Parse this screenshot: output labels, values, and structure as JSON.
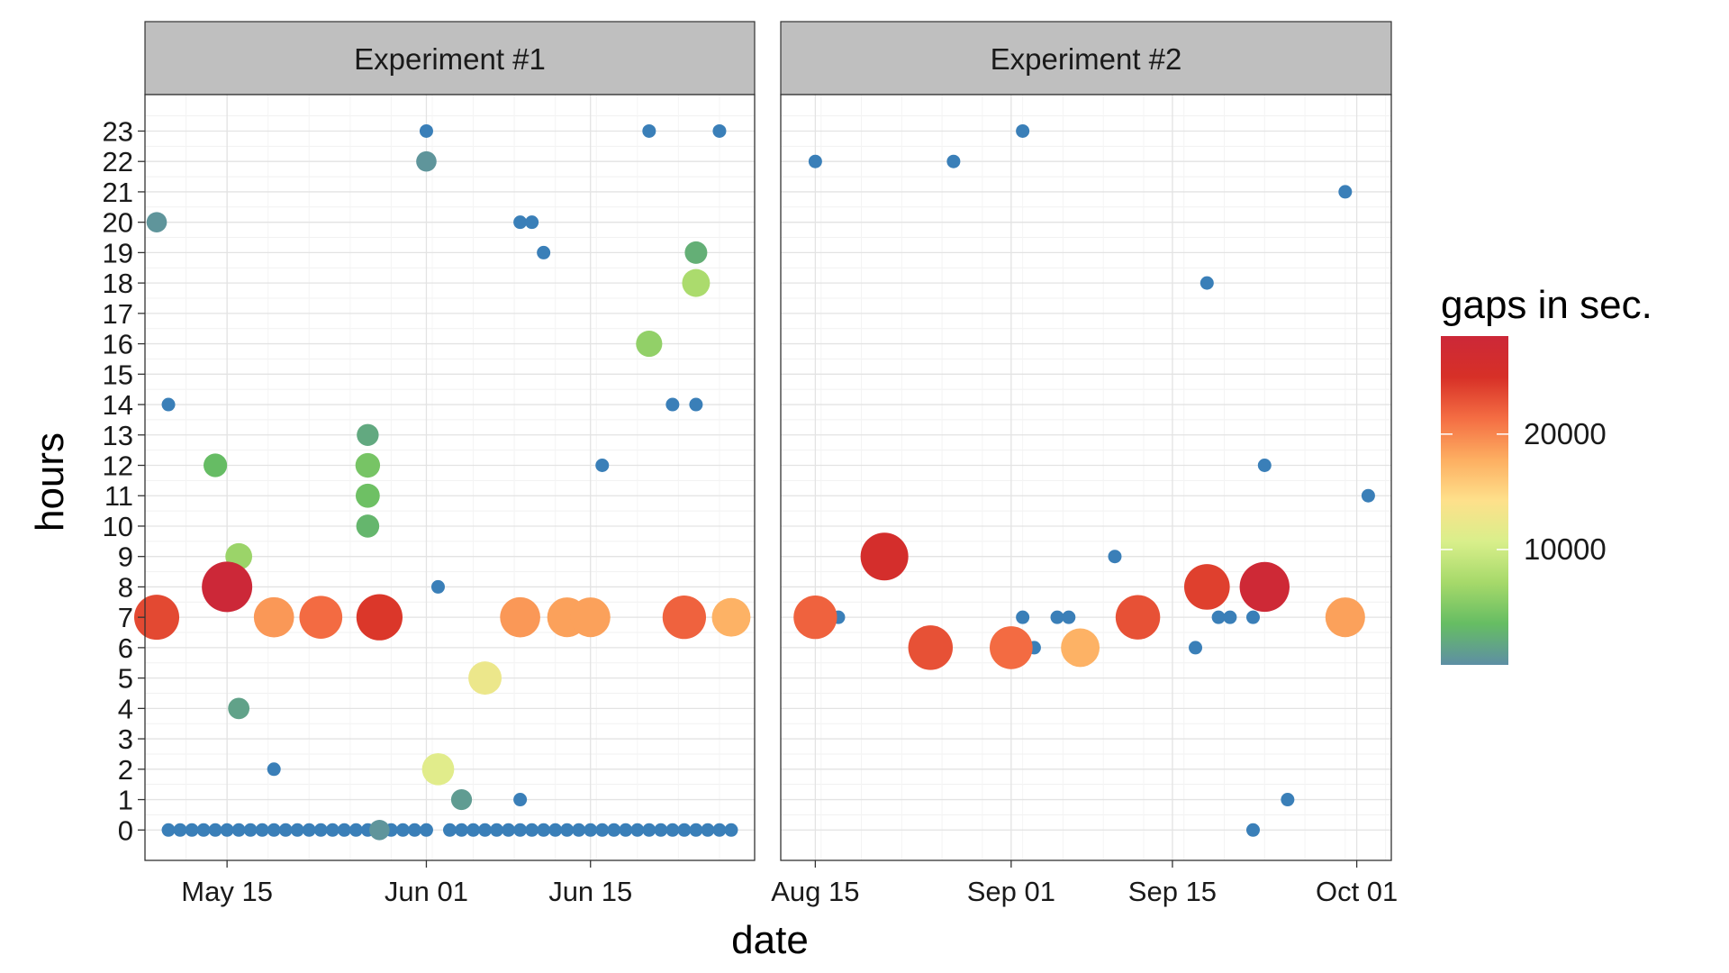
{
  "chart_data": {
    "type": "scatter",
    "xlabel": "date",
    "ylabel": "hours",
    "y_ticks": [
      0,
      1,
      2,
      3,
      4,
      5,
      6,
      7,
      8,
      9,
      10,
      11,
      12,
      13,
      14,
      15,
      16,
      17,
      18,
      19,
      20,
      21,
      22,
      23
    ],
    "ylim": [
      -1,
      24.2
    ],
    "grid": true,
    "legend": {
      "title": "gaps in sec.",
      "placement": "right",
      "range": [
        0,
        28500
      ],
      "ticks": [
        10000,
        20000
      ],
      "tick_labels": [
        "10000",
        "20000"
      ],
      "colors": [
        "#5e8fa4",
        "#66bd63",
        "#a6d96a",
        "#d9ef8b",
        "#fee08b",
        "#fdae61",
        "#f46d43",
        "#d73027",
        "#cc2838"
      ]
    },
    "panels": [
      {
        "strip_label": "Experiment #1",
        "x_range": [
          "2016-05-08",
          "2016-06-29"
        ],
        "x_ticks": [
          {
            "date": "2016-05-15",
            "label": "May 15"
          },
          {
            "date": "2016-06-01",
            "label": "Jun 01"
          },
          {
            "date": "2016-06-15",
            "label": "Jun 15"
          }
        ],
        "points": [
          {
            "x": "2016-05-10",
            "y": 0,
            "gap": 0
          },
          {
            "x": "2016-05-11",
            "y": 0,
            "gap": 0
          },
          {
            "x": "2016-05-12",
            "y": 0,
            "gap": 0
          },
          {
            "x": "2016-05-13",
            "y": 0,
            "gap": 0
          },
          {
            "x": "2016-05-14",
            "y": 0,
            "gap": 0
          },
          {
            "x": "2016-05-15",
            "y": 0,
            "gap": 0
          },
          {
            "x": "2016-05-16",
            "y": 0,
            "gap": 0
          },
          {
            "x": "2016-05-17",
            "y": 0,
            "gap": 0
          },
          {
            "x": "2016-05-18",
            "y": 0,
            "gap": 0
          },
          {
            "x": "2016-05-19",
            "y": 0,
            "gap": 0
          },
          {
            "x": "2016-05-20",
            "y": 0,
            "gap": 0
          },
          {
            "x": "2016-05-21",
            "y": 0,
            "gap": 0
          },
          {
            "x": "2016-05-22",
            "y": 0,
            "gap": 0
          },
          {
            "x": "2016-05-23",
            "y": 0,
            "gap": 0
          },
          {
            "x": "2016-05-24",
            "y": 0,
            "gap": 0
          },
          {
            "x": "2016-05-25",
            "y": 0,
            "gap": 0
          },
          {
            "x": "2016-05-26",
            "y": 0,
            "gap": 0
          },
          {
            "x": "2016-05-27",
            "y": 0,
            "gap": 0
          },
          {
            "x": "2016-05-28",
            "y": 0,
            "gap": 500
          },
          {
            "x": "2016-05-29",
            "y": 0,
            "gap": 0
          },
          {
            "x": "2016-05-30",
            "y": 0,
            "gap": 0
          },
          {
            "x": "2016-05-31",
            "y": 0,
            "gap": 0
          },
          {
            "x": "2016-06-01",
            "y": 0,
            "gap": 0
          },
          {
            "x": "2016-06-03",
            "y": 0,
            "gap": 0
          },
          {
            "x": "2016-06-04",
            "y": 0,
            "gap": 0
          },
          {
            "x": "2016-06-05",
            "y": 0,
            "gap": 0
          },
          {
            "x": "2016-06-06",
            "y": 0,
            "gap": 0
          },
          {
            "x": "2016-06-07",
            "y": 0,
            "gap": 0
          },
          {
            "x": "2016-06-08",
            "y": 0,
            "gap": 0
          },
          {
            "x": "2016-06-09",
            "y": 0,
            "gap": 0
          },
          {
            "x": "2016-06-10",
            "y": 0,
            "gap": 0
          },
          {
            "x": "2016-06-11",
            "y": 0,
            "gap": 0
          },
          {
            "x": "2016-06-12",
            "y": 0,
            "gap": 0
          },
          {
            "x": "2016-06-13",
            "y": 0,
            "gap": 0
          },
          {
            "x": "2016-06-14",
            "y": 0,
            "gap": 0
          },
          {
            "x": "2016-06-15",
            "y": 0,
            "gap": 0
          },
          {
            "x": "2016-06-16",
            "y": 0,
            "gap": 0
          },
          {
            "x": "2016-06-17",
            "y": 0,
            "gap": 0
          },
          {
            "x": "2016-06-18",
            "y": 0,
            "gap": 0
          },
          {
            "x": "2016-06-19",
            "y": 0,
            "gap": 0
          },
          {
            "x": "2016-06-20",
            "y": 0,
            "gap": 0
          },
          {
            "x": "2016-06-21",
            "y": 0,
            "gap": 0
          },
          {
            "x": "2016-06-22",
            "y": 0,
            "gap": 0
          },
          {
            "x": "2016-06-23",
            "y": 0,
            "gap": 0
          },
          {
            "x": "2016-06-24",
            "y": 0,
            "gap": 0
          },
          {
            "x": "2016-06-25",
            "y": 0,
            "gap": 0
          },
          {
            "x": "2016-06-26",
            "y": 0,
            "gap": 0
          },
          {
            "x": "2016-06-27",
            "y": 0,
            "gap": 0
          },
          {
            "x": "2016-06-09",
            "y": 1,
            "gap": 0
          },
          {
            "x": "2016-06-04",
            "y": 1,
            "gap": 1000
          },
          {
            "x": "2016-05-19",
            "y": 2,
            "gap": 0
          },
          {
            "x": "2016-06-02",
            "y": 2,
            "gap": 11500
          },
          {
            "x": "2016-05-16",
            "y": 4,
            "gap": 1500
          },
          {
            "x": "2016-06-06",
            "y": 5,
            "gap": 12500
          },
          {
            "x": "2016-05-09",
            "y": 7,
            "gap": 23500
          },
          {
            "x": "2016-05-19",
            "y": 7,
            "gap": 19000
          },
          {
            "x": "2016-05-23",
            "y": 7,
            "gap": 21500
          },
          {
            "x": "2016-05-28",
            "y": 7,
            "gap": 24500
          },
          {
            "x": "2016-06-09",
            "y": 7,
            "gap": 19000
          },
          {
            "x": "2016-06-13",
            "y": 7,
            "gap": 18500
          },
          {
            "x": "2016-06-15",
            "y": 7,
            "gap": 18500
          },
          {
            "x": "2016-06-23",
            "y": 7,
            "gap": 22000
          },
          {
            "x": "2016-06-27",
            "y": 7,
            "gap": 17500
          },
          {
            "x": "2016-05-15",
            "y": 8,
            "gap": 28500
          },
          {
            "x": "2016-06-02",
            "y": 8,
            "gap": 0
          },
          {
            "x": "2016-05-16",
            "y": 9,
            "gap": 6500
          },
          {
            "x": "2016-05-27",
            "y": 10,
            "gap": 3000
          },
          {
            "x": "2016-05-27",
            "y": 11,
            "gap": 4000
          },
          {
            "x": "2016-05-14",
            "y": 12,
            "gap": 3500
          },
          {
            "x": "2016-05-27",
            "y": 12,
            "gap": 4500
          },
          {
            "x": "2016-06-16",
            "y": 12,
            "gap": 0
          },
          {
            "x": "2016-05-27",
            "y": 13,
            "gap": 2000
          },
          {
            "x": "2016-05-10",
            "y": 14,
            "gap": 0
          },
          {
            "x": "2016-06-22",
            "y": 14,
            "gap": 0
          },
          {
            "x": "2016-06-24",
            "y": 14,
            "gap": 0
          },
          {
            "x": "2016-06-20",
            "y": 16,
            "gap": 6000
          },
          {
            "x": "2016-06-24",
            "y": 18,
            "gap": 7500
          },
          {
            "x": "2016-06-11",
            "y": 19,
            "gap": 0
          },
          {
            "x": "2016-06-24",
            "y": 19,
            "gap": 2500
          },
          {
            "x": "2016-05-09",
            "y": 20,
            "gap": 500
          },
          {
            "x": "2016-06-09",
            "y": 20,
            "gap": 0
          },
          {
            "x": "2016-06-10",
            "y": 20,
            "gap": 0
          },
          {
            "x": "2016-06-01",
            "y": 22,
            "gap": 500
          },
          {
            "x": "2016-06-01",
            "y": 23,
            "gap": 0
          },
          {
            "x": "2016-06-20",
            "y": 23,
            "gap": 0
          },
          {
            "x": "2016-06-26",
            "y": 23,
            "gap": 0
          }
        ]
      },
      {
        "strip_label": "Experiment #2",
        "x_range": [
          "2016-08-12",
          "2016-10-04"
        ],
        "x_ticks": [
          {
            "date": "2016-08-15",
            "label": "Aug 15"
          },
          {
            "date": "2016-09-01",
            "label": "Sep 01"
          },
          {
            "date": "2016-09-15",
            "label": "Sep 15"
          },
          {
            "date": "2016-10-01",
            "label": "Oct 01"
          }
        ],
        "points": [
          {
            "x": "2016-09-22",
            "y": 0,
            "gap": 0
          },
          {
            "x": "2016-09-25",
            "y": 1,
            "gap": 0
          },
          {
            "x": "2016-08-25",
            "y": 6,
            "gap": 23000
          },
          {
            "x": "2016-09-01",
            "y": 6,
            "gap": 21500
          },
          {
            "x": "2016-09-07",
            "y": 6,
            "gap": 17500
          },
          {
            "x": "2016-09-03",
            "y": 6,
            "gap": 0
          },
          {
            "x": "2016-09-17",
            "y": 6,
            "gap": 0
          },
          {
            "x": "2016-08-15",
            "y": 7,
            "gap": 22000
          },
          {
            "x": "2016-08-16",
            "y": 7,
            "gap": 0
          },
          {
            "x": "2016-08-17",
            "y": 7,
            "gap": 0
          },
          {
            "x": "2016-09-02",
            "y": 7,
            "gap": 0
          },
          {
            "x": "2016-09-05",
            "y": 7,
            "gap": 0
          },
          {
            "x": "2016-09-06",
            "y": 7,
            "gap": 0
          },
          {
            "x": "2016-09-12",
            "y": 7,
            "gap": 23000
          },
          {
            "x": "2016-09-13",
            "y": 7,
            "gap": 0
          },
          {
            "x": "2016-09-19",
            "y": 7,
            "gap": 0
          },
          {
            "x": "2016-09-20",
            "y": 7,
            "gap": 0
          },
          {
            "x": "2016-09-22",
            "y": 7,
            "gap": 0
          },
          {
            "x": "2016-09-30",
            "y": 7,
            "gap": 18500
          },
          {
            "x": "2016-08-21",
            "y": 9,
            "gap": 26000
          },
          {
            "x": "2016-09-10",
            "y": 9,
            "gap": 0
          },
          {
            "x": "2016-09-18",
            "y": 8,
            "gap": 24000
          },
          {
            "x": "2016-09-23",
            "y": 8,
            "gap": 28000
          },
          {
            "x": "2016-09-23",
            "y": 12,
            "gap": 0
          },
          {
            "x": "2016-10-02",
            "y": 11,
            "gap": 0
          },
          {
            "x": "2016-09-18",
            "y": 18,
            "gap": 0
          },
          {
            "x": "2016-09-30",
            "y": 21,
            "gap": 0
          },
          {
            "x": "2016-08-15",
            "y": 22,
            "gap": 0
          },
          {
            "x": "2016-08-27",
            "y": 22,
            "gap": 0
          },
          {
            "x": "2016-09-02",
            "y": 23,
            "gap": 0
          }
        ]
      }
    ]
  }
}
